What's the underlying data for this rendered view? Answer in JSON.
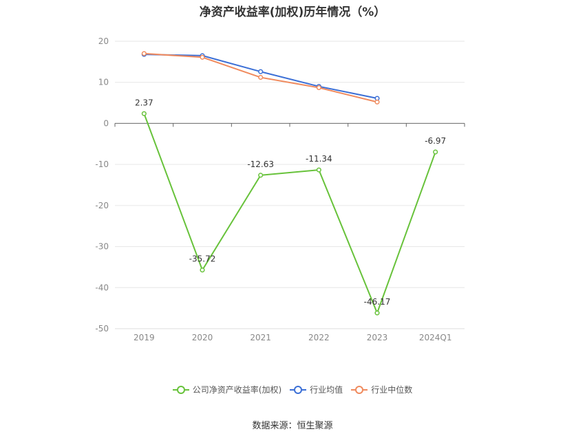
{
  "chart_data": {
    "type": "line",
    "title": "净资产收益率(加权)历年情况（%）",
    "categories": [
      "2019",
      "2020",
      "2021",
      "2022",
      "2023",
      "2024Q1"
    ],
    "ylim": [
      -50,
      20
    ],
    "yticks": [
      20,
      10,
      0,
      -10,
      -20,
      -30,
      -40,
      -50
    ],
    "grid": true,
    "legend_position": "bottom",
    "series": [
      {
        "name": "公司净资产收益率(加权)",
        "color": "#67c23a",
        "values": [
          2.37,
          -35.72,
          -12.63,
          -11.34,
          -46.17,
          -6.97
        ],
        "labels": [
          "2.37",
          "-35.72",
          "-12.63",
          "-11.34",
          "-46.17",
          "-6.97"
        ]
      },
      {
        "name": "行业均值",
        "color": "#3b6fd6",
        "values": [
          16.8,
          16.5,
          12.6,
          9.0,
          6.1,
          null
        ]
      },
      {
        "name": "行业中位数",
        "color": "#f08a5d",
        "values": [
          17.0,
          16.1,
          11.2,
          8.7,
          5.2,
          null
        ]
      }
    ]
  },
  "source": "数据来源：恒生聚源"
}
